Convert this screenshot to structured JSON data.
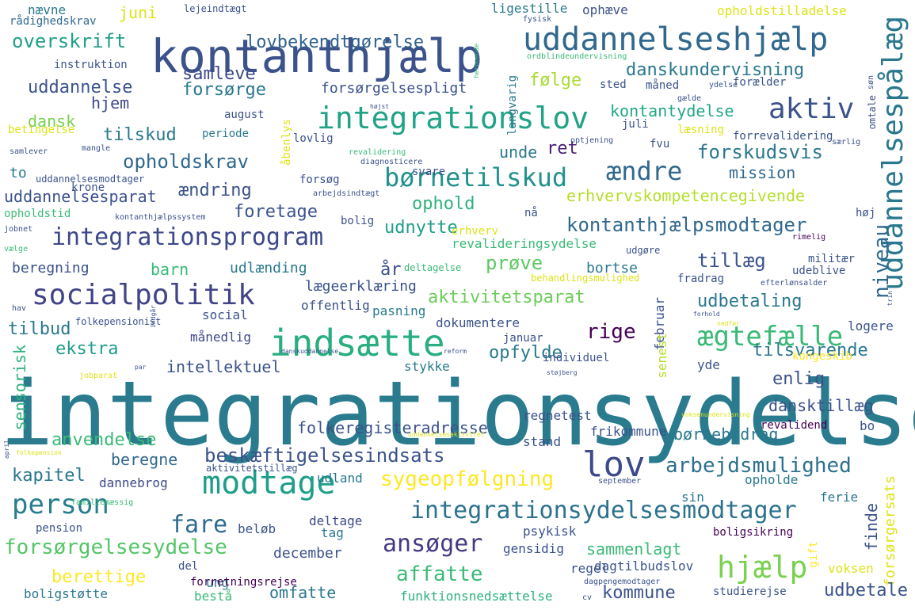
{
  "words": [
    {
      "text": "integrationsydelse",
      "color": "#2a7b8e"
    },
    {
      "text": "kontanthjælp",
      "color": "#3b528b"
    },
    {
      "text": "uddannelseshjælp",
      "color": "#31688e"
    },
    {
      "text": "integrationslov",
      "color": "#20a386"
    },
    {
      "text": "indsætte",
      "color": "#29af7f"
    },
    {
      "text": "socialpolitik",
      "color": "#414487"
    },
    {
      "text": "integrationsprogram",
      "color": "#3e4989"
    },
    {
      "text": "børnetilskud",
      "color": "#21918c"
    },
    {
      "text": "aktiv",
      "color": "#3b528b"
    },
    {
      "text": "modtage",
      "color": "#1f9e89"
    },
    {
      "text": "person",
      "color": "#287d8e"
    },
    {
      "text": "lov",
      "color": "#3e4a89"
    },
    {
      "text": "integrationsydelsesmodtager",
      "color": "#2c728e"
    },
    {
      "text": "beskæftigelsesindsats",
      "color": "#3b528b"
    },
    {
      "text": "hjælp",
      "color": "#7ad151"
    },
    {
      "text": "ændre",
      "color": "#31688e"
    },
    {
      "text": "uddannelsespålæg",
      "color": "#2a788e"
    },
    {
      "text": "ægtefælle",
      "color": "#3aba76"
    },
    {
      "text": "sygeopfølgning",
      "color": "#fde725"
    },
    {
      "text": "arbejdsmulighed",
      "color": "#2d708e"
    },
    {
      "text": "kontanthjælpsmodtager",
      "color": "#31688e"
    },
    {
      "text": "fare",
      "color": "#2f6c8e"
    },
    {
      "text": "ansøger",
      "color": "#443a83"
    },
    {
      "text": "forsørgelsesydelse",
      "color": "#54c568"
    },
    {
      "text": "overskrift",
      "color": "#1fa088"
    },
    {
      "text": "lovbekendtgørelse",
      "color": "#33628d"
    },
    {
      "text": "samleve",
      "color": "#3e4989"
    },
    {
      "text": "danskundervisning",
      "color": "#2a788e"
    },
    {
      "text": "forsørge",
      "color": "#2a788e"
    },
    {
      "text": "følge",
      "color": "#a8db34"
    },
    {
      "text": "uddannelse",
      "color": "#3b528b"
    },
    {
      "text": "hjem",
      "color": "#3e4989"
    },
    {
      "text": "dansk",
      "color": "#7ad151"
    },
    {
      "text": "kontantydelse",
      "color": "#22a884"
    },
    {
      "text": "forsørgelsespligt",
      "color": "#3b528b"
    },
    {
      "text": "tilskud",
      "color": "#2a788e"
    },
    {
      "text": "opholdskrav",
      "color": "#31688e"
    },
    {
      "text": "forskudsvis",
      "color": "#2a788e"
    },
    {
      "text": "mission",
      "color": "#31688e"
    },
    {
      "text": "erhvervskompetencegivende",
      "color": "#b5de2b"
    },
    {
      "text": "uddannelsesparat",
      "color": "#3b528b"
    },
    {
      "text": "ændring",
      "color": "#3b528b"
    },
    {
      "text": "foretage",
      "color": "#3b528b"
    },
    {
      "text": "ophold",
      "color": "#2db27d"
    },
    {
      "text": "ret",
      "color": "#481f70"
    },
    {
      "text": "unde",
      "color": "#2a788e"
    },
    {
      "text": "udnytte",
      "color": "#1f9e89"
    },
    {
      "text": "prøve",
      "color": "#5ec962"
    },
    {
      "text": "tillæg",
      "color": "#3b528b"
    },
    {
      "text": "niveau",
      "color": "#31688e"
    },
    {
      "text": "aktivitetsparat",
      "color": "#6ccd5a"
    },
    {
      "text": "udbetaling",
      "color": "#2a788e"
    },
    {
      "text": "tilbud",
      "color": "#2a788e"
    },
    {
      "text": "rige",
      "color": "#440154"
    },
    {
      "text": "opfylde",
      "color": "#2a788e"
    },
    {
      "text": "tilsvarende",
      "color": "#2a788e"
    },
    {
      "text": "enlig",
      "color": "#3b528b"
    },
    {
      "text": "dansktillæg",
      "color": "#3b528b"
    },
    {
      "text": "børnebidrag",
      "color": "#2a788e"
    },
    {
      "text": "folkeregisteradresse",
      "color": "#3b528b"
    },
    {
      "text": "anvendelse",
      "color": "#3aba76"
    },
    {
      "text": "beregne",
      "color": "#31688e"
    },
    {
      "text": "kapitel",
      "color": "#2a788e"
    },
    {
      "text": "ekstra",
      "color": "#1f9e89"
    },
    {
      "text": "intellektuel",
      "color": "#3b528b"
    },
    {
      "text": "sensorisk",
      "color": "#2db27d"
    },
    {
      "text": "barn",
      "color": "#3aba76"
    },
    {
      "text": "beregning",
      "color": "#3b528b"
    },
    {
      "text": "udlænding",
      "color": "#2a788e"
    },
    {
      "text": "år",
      "color": "#3b528b"
    },
    {
      "text": "bortse",
      "color": "#2a788e"
    },
    {
      "text": "lægeerklæring",
      "color": "#3b528b"
    },
    {
      "text": "offentlig",
      "color": "#3b528b"
    },
    {
      "text": "social",
      "color": "#3b528b"
    },
    {
      "text": "pasning",
      "color": "#2a788e"
    },
    {
      "text": "dokumentere",
      "color": "#3b528b"
    },
    {
      "text": "månedlig",
      "color": "#3e4989"
    },
    {
      "text": "stykke",
      "color": "#2a788e"
    },
    {
      "text": "februar",
      "color": "#3b528b"
    },
    {
      "text": "senest",
      "color": "#b5de2b"
    },
    {
      "text": "yde",
      "color": "#3b528b"
    },
    {
      "text": "logere",
      "color": "#3b528b"
    },
    {
      "text": "kongeskib",
      "color": "#fde725"
    },
    {
      "text": "regnetest",
      "color": "#3b528b"
    },
    {
      "text": "frikommune",
      "color": "#3b528b"
    },
    {
      "text": "stand",
      "color": "#3b528b"
    },
    {
      "text": "revalidend",
      "color": "#440154"
    },
    {
      "text": "bo",
      "color": "#3b528b"
    },
    {
      "text": "dannebrog",
      "color": "#3e4989"
    },
    {
      "text": "udland",
      "color": "#2a788e"
    },
    {
      "text": "opholde",
      "color": "#2a788e"
    },
    {
      "text": "ferie",
      "color": "#2a788e"
    },
    {
      "text": "sin",
      "color": "#2a788e"
    },
    {
      "text": "finde",
      "color": "#3b528b"
    },
    {
      "text": "forsørgersats",
      "color": "#dde318"
    },
    {
      "text": "december",
      "color": "#3b528b"
    },
    {
      "text": "beløb",
      "color": "#3b528b"
    },
    {
      "text": "tag",
      "color": "#2a788e"
    },
    {
      "text": "deltage",
      "color": "#3e4989"
    },
    {
      "text": "psykisk",
      "color": "#3b528b"
    },
    {
      "text": "boligsikring",
      "color": "#440154"
    },
    {
      "text": "sammenlagt",
      "color": "#3aba76"
    },
    {
      "text": "regel",
      "color": "#3b528b"
    },
    {
      "text": "gift",
      "color": "#fde725"
    },
    {
      "text": "voksen",
      "color": "#dde318"
    },
    {
      "text": "pension",
      "color": "#3b528b"
    },
    {
      "text": "berettige",
      "color": "#fde725"
    },
    {
      "text": "ung",
      "color": "#2a788e"
    },
    {
      "text": "del",
      "color": "#3b528b"
    },
    {
      "text": "affatte",
      "color": "#3aba76"
    },
    {
      "text": "forretningsrejse",
      "color": "#440154"
    },
    {
      "text": "gensidig",
      "color": "#3b528b"
    },
    {
      "text": "dagtilbudslov",
      "color": "#3b528b"
    },
    {
      "text": "boligstøtte",
      "color": "#2a788e"
    },
    {
      "text": "bestå",
      "color": "#3aba76"
    },
    {
      "text": "omfatte",
      "color": "#2a788e"
    },
    {
      "text": "funktionsnedsættelse",
      "color": "#2db27d"
    },
    {
      "text": "kommune",
      "color": "#3b528b"
    },
    {
      "text": "udbetale",
      "color": "#3b528b"
    },
    {
      "text": "studierejse",
      "color": "#3b528b"
    },
    {
      "text": "juni",
      "color": "#dde318"
    },
    {
      "text": "nævne",
      "color": "#2a788e"
    },
    {
      "text": "rådighedskrav",
      "color": "#31688e"
    },
    {
      "text": "lejeindtægt",
      "color": "#3b528b"
    },
    {
      "text": "ligestille",
      "color": "#2a788e"
    },
    {
      "text": "ophæve",
      "color": "#3b528b"
    },
    {
      "text": "fysisk",
      "color": "#3b528b"
    },
    {
      "text": "opholdstilladelse",
      "color": "#dde318"
    },
    {
      "text": "instruktion",
      "color": "#3b528b"
    },
    {
      "text": "langvarig",
      "color": "#2a788e"
    },
    {
      "text": "sted",
      "color": "#3b528b"
    },
    {
      "text": "måned",
      "color": "#3b528b"
    },
    {
      "text": "forælder",
      "color": "#3b528b"
    },
    {
      "text": "ydelse",
      "color": "#3b528b"
    },
    {
      "text": "søn",
      "color": "#3b528b"
    },
    {
      "text": "omtale",
      "color": "#3b528b"
    },
    {
      "text": "gælde",
      "color": "#3b528b"
    },
    {
      "text": "august",
      "color": "#3b528b"
    },
    {
      "text": "periode",
      "color": "#2a788e"
    },
    {
      "text": "åbenlys",
      "color": "#dde318"
    },
    {
      "text": "lovlig",
      "color": "#3b528b"
    },
    {
      "text": "juli",
      "color": "#3b528b"
    },
    {
      "text": "læsning",
      "color": "#dde318"
    },
    {
      "text": "forrevalidering",
      "color": "#3b528b"
    },
    {
      "text": "betingelse",
      "color": "#dde318"
    },
    {
      "text": "samlever",
      "color": "#3b528b"
    },
    {
      "text": "mangle",
      "color": "#3b528b"
    },
    {
      "text": "revalidering",
      "color": "#3aba76"
    },
    {
      "text": "optjening",
      "color": "#3b528b"
    },
    {
      "text": "diagnosticere",
      "color": "#3b528b"
    },
    {
      "text": "fvu",
      "color": "#3b528b"
    },
    {
      "text": "særlig",
      "color": "#3b528b"
    },
    {
      "text": "svare",
      "color": "#3b528b"
    },
    {
      "text": "forsøg",
      "color": "#3b528b"
    },
    {
      "text": "arbejdsindtægt",
      "color": "#3b528b"
    },
    {
      "text": "to",
      "color": "#2a788e"
    },
    {
      "text": "krone",
      "color": "#3b528b"
    },
    {
      "text": "uddannelsesmodtager",
      "color": "#3b528b"
    },
    {
      "text": "opholdstid",
      "color": "#3aba76"
    },
    {
      "text": "kontanthjælpssystem",
      "color": "#3b528b"
    },
    {
      "text": "bolig",
      "color": "#3b528b"
    },
    {
      "text": "nå",
      "color": "#3b528b"
    },
    {
      "text": "erhverv",
      "color": "#dde318"
    },
    {
      "text": "revalideringsydelse",
      "color": "#3aba76"
    },
    {
      "text": "høj",
      "color": "#3b528b"
    },
    {
      "text": "rimelig",
      "color": "#440154"
    },
    {
      "text": "jobnet",
      "color": "#3b528b"
    },
    {
      "text": "udgøre",
      "color": "#3b528b"
    },
    {
      "text": "militær",
      "color": "#3b528b"
    },
    {
      "text": "udeblive",
      "color": "#3b528b"
    },
    {
      "text": "deltagelse",
      "color": "#3aba76"
    },
    {
      "text": "behandlingsmulighed",
      "color": "#dde318"
    },
    {
      "text": "fradrag",
      "color": "#3b528b"
    },
    {
      "text": "efterlønsalder",
      "color": "#3b528b"
    },
    {
      "text": "hav",
      "color": "#3b528b"
    },
    {
      "text": "vælge",
      "color": "#3aba76"
    },
    {
      "text": "folkepensionist",
      "color": "#3b528b"
    },
    {
      "text": "forhold",
      "color": "#3b528b"
    },
    {
      "text": "januar",
      "color": "#3b528b"
    },
    {
      "text": "individuel",
      "color": "#3b528b"
    },
    {
      "text": "trin",
      "color": "#3b528b"
    },
    {
      "text": "jobparat",
      "color": "#dde318"
    },
    {
      "text": "par",
      "color": "#3b528b"
    },
    {
      "text": "danskuddannelse",
      "color": "#3b528b"
    },
    {
      "text": "reform",
      "color": "#3b528b"
    },
    {
      "text": "støjberg",
      "color": "#3b528b"
    },
    {
      "text": "voksenundervisning",
      "color": "#dde318"
    },
    {
      "text": "uddannelsesaktivitet",
      "color": "#dde318"
    },
    {
      "text": "april",
      "color": "#3b528b"
    },
    {
      "text": "folkepension",
      "color": "#dde318"
    },
    {
      "text": "aktivitetstillæg",
      "color": "#3b528b"
    },
    {
      "text": "september",
      "color": "#3b528b"
    },
    {
      "text": "familiemæssig",
      "color": "#3aba76"
    },
    {
      "text": "dagpengemodtager",
      "color": "#3b528b"
    },
    {
      "text": "cv",
      "color": "#3b528b"
    },
    {
      "text": "ordblindeundervisning",
      "color": "#3aba76"
    },
    {
      "text": "herboende",
      "color": "#3aba76"
    },
    {
      "text": "højst",
      "color": "#3b528b"
    },
    {
      "text": "indgår",
      "color": "#3b528b"
    },
    {
      "text": "nedfør",
      "color": "#dde318"
    }
  ]
}
